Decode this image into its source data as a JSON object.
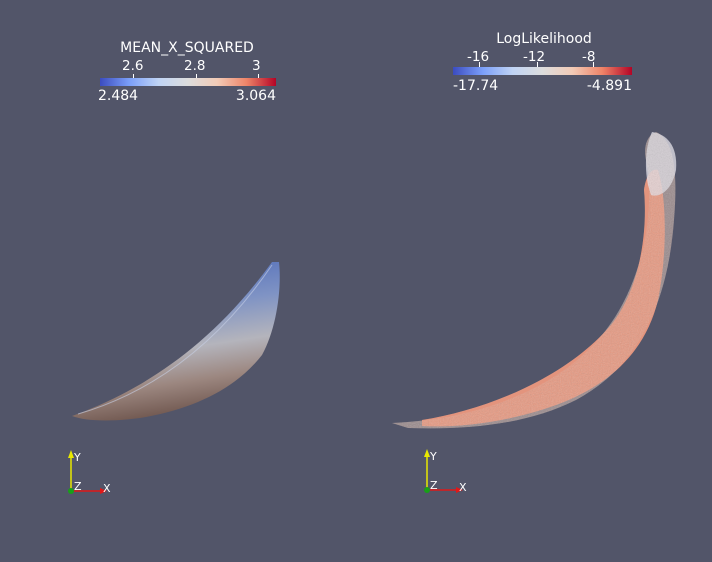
{
  "left_view": {
    "colorbar": {
      "title": "MEAN_X_SQUARED",
      "ticks": [
        "2.6",
        "2.8",
        "3"
      ],
      "min_label": "2.484",
      "max_label": "3.064"
    },
    "axes": {
      "y": "Y",
      "z": "Z",
      "x": "X"
    }
  },
  "right_view": {
    "colorbar": {
      "title": "LogLikelihood",
      "ticks": [
        "-16",
        "-12",
        "-8"
      ],
      "min_label": "-17.74",
      "max_label": "-4.891"
    },
    "axes": {
      "y": "Y",
      "z": "Z",
      "x": "X"
    }
  },
  "colors": {
    "background": "#525569",
    "colormap_low": "#3b4cc0",
    "colormap_mid": "#dddddd",
    "colormap_high": "#b40426"
  }
}
